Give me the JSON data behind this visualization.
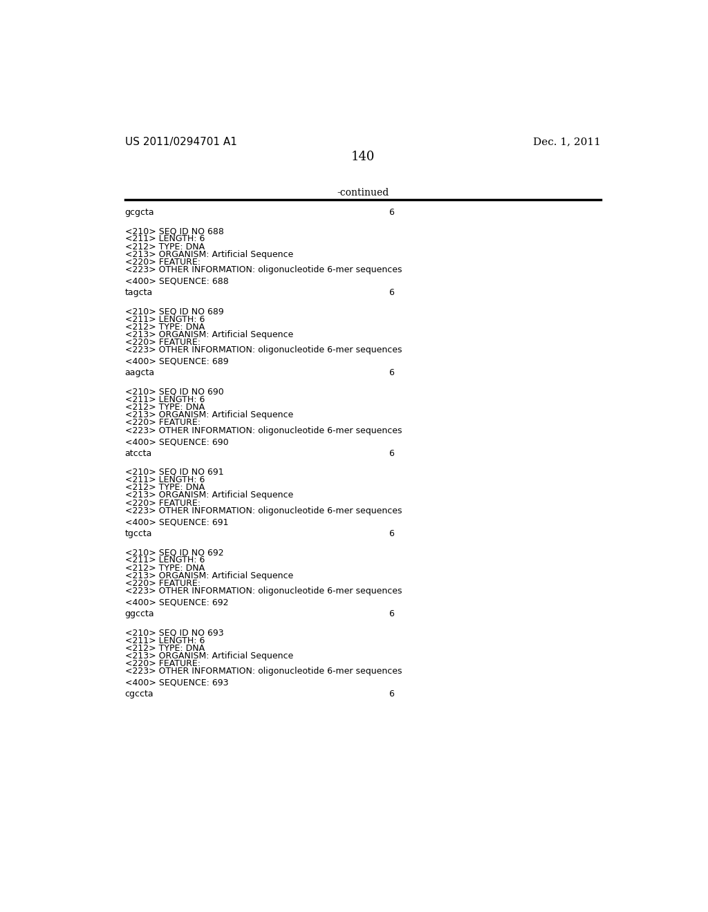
{
  "bg_color": "#ffffff",
  "top_left_text": "US 2011/0294701 A1",
  "top_right_text": "Dec. 1, 2011",
  "page_number": "140",
  "continued_text": "-continued",
  "monospace_font": "Courier New",
  "serif_font": "DejaVu Serif",
  "blocks": [
    {
      "sequence": "gcgcta",
      "length_val": "6",
      "meta_lines": [
        "<210> SEQ ID NO 688",
        "<211> LENGTH: 6",
        "<212> TYPE: DNA",
        "<213> ORGANISM: Artificial Sequence",
        "<220> FEATURE:",
        "<223> OTHER INFORMATION: oligonucleotide 6-mer sequences"
      ],
      "seq_label": "<400> SEQUENCE: 688",
      "next_sequence": "tagcta",
      "next_length_val": "6"
    },
    {
      "sequence": "tagcta",
      "length_val": "6",
      "meta_lines": [
        "<210> SEQ ID NO 689",
        "<211> LENGTH: 6",
        "<212> TYPE: DNA",
        "<213> ORGANISM: Artificial Sequence",
        "<220> FEATURE:",
        "<223> OTHER INFORMATION: oligonucleotide 6-mer sequences"
      ],
      "seq_label": "<400> SEQUENCE: 689",
      "next_sequence": "aagcta",
      "next_length_val": "6"
    },
    {
      "sequence": "aagcta",
      "length_val": "6",
      "meta_lines": [
        "<210> SEQ ID NO 690",
        "<211> LENGTH: 6",
        "<212> TYPE: DNA",
        "<213> ORGANISM: Artificial Sequence",
        "<220> FEATURE:",
        "<223> OTHER INFORMATION: oligonucleotide 6-mer sequences"
      ],
      "seq_label": "<400> SEQUENCE: 690",
      "next_sequence": "atccta",
      "next_length_val": "6"
    },
    {
      "sequence": "atccta",
      "length_val": "6",
      "meta_lines": [
        "<210> SEQ ID NO 691",
        "<211> LENGTH: 6",
        "<212> TYPE: DNA",
        "<213> ORGANISM: Artificial Sequence",
        "<220> FEATURE:",
        "<223> OTHER INFORMATION: oligonucleotide 6-mer sequences"
      ],
      "seq_label": "<400> SEQUENCE: 691",
      "next_sequence": "tgccta",
      "next_length_val": "6"
    },
    {
      "sequence": "tgccta",
      "length_val": "6",
      "meta_lines": [
        "<210> SEQ ID NO 692",
        "<211> LENGTH: 6",
        "<212> TYPE: DNA",
        "<213> ORGANISM: Artificial Sequence",
        "<220> FEATURE:",
        "<223> OTHER INFORMATION: oligonucleotide 6-mer sequences"
      ],
      "seq_label": "<400> SEQUENCE: 692",
      "next_sequence": "ggccta",
      "next_length_val": "6"
    },
    {
      "sequence": "ggccta",
      "length_val": "6",
      "meta_lines": [
        "<210> SEQ ID NO 693",
        "<211> LENGTH: 6",
        "<212> TYPE: DNA",
        "<213> ORGANISM: Artificial Sequence",
        "<220> FEATURE:",
        "<223> OTHER INFORMATION: oligonucleotide 6-mer sequences"
      ],
      "seq_label": "<400> SEQUENCE: 693",
      "next_sequence": "cgccta",
      "next_length_val": "6"
    }
  ],
  "last_sequence": "cgccta",
  "last_length_val": "6"
}
